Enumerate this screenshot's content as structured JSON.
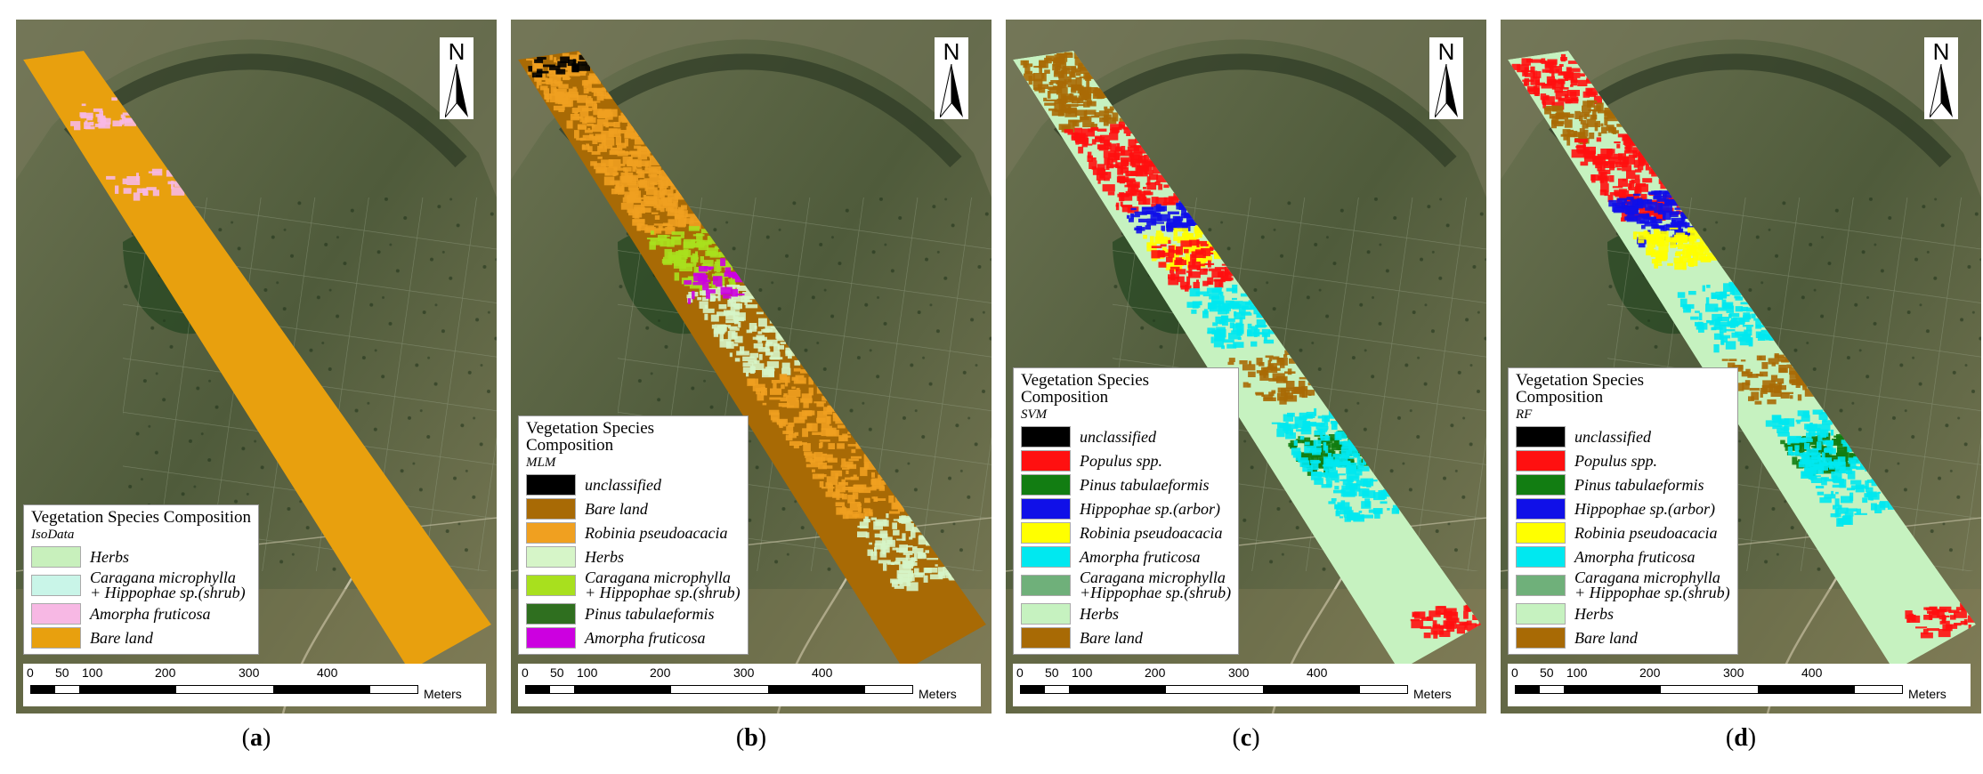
{
  "north_label": "N",
  "scale": {
    "ticks": [
      "0",
      "50",
      "100",
      "200",
      "300",
      "400"
    ],
    "unit": "Meters"
  },
  "colors": {
    "herbs_light": "#c8f0bc",
    "caragana_light": "#c9f5e8",
    "amorpha_pink": "#f7b8e4",
    "bare_orange": "#e8a00e",
    "black": "#000000",
    "bare_brown": "#a86a05",
    "robinia_orange": "#f0a020",
    "herbs_pale": "#d6f5c8",
    "caragana_green": "#a8e01e",
    "pinus_dark": "#2f6f1f",
    "amorpha_magenta": "#cc00e0",
    "populus_red": "#ff1010",
    "pinus_green": "#127d12",
    "hippophae_blue": "#1010e8",
    "robinia_yellow": "#ffff00",
    "amorpha_cyan": "#00e8f0",
    "caragana_sage": "#6fb07a",
    "herbs_mint": "#c6f2c0"
  },
  "panels": [
    {
      "caption": "a",
      "legend_title": "Vegetation Species Composition",
      "legend_subtitle": "IsoData",
      "items": [
        {
          "label": "Herbs",
          "color": "#c8f0bc"
        },
        {
          "label": "Caragana microphylla\n+ Hippophae sp.(shrub)",
          "color": "#c9f5e8"
        },
        {
          "label": "Amorpha fruticosa",
          "color": "#f7b8e4"
        },
        {
          "label": "Bare land",
          "color": "#e8a00e"
        }
      ]
    },
    {
      "caption": "b",
      "legend_title": "Vegetation Species\nComposition",
      "legend_subtitle": "MLM",
      "items": [
        {
          "label": "unclassified",
          "color": "#000000"
        },
        {
          "label": "Bare land",
          "color": "#a86a05"
        },
        {
          "label": "Robinia pseudoacacia",
          "color": "#f0a020"
        },
        {
          "label": "Herbs",
          "color": "#d6f5c8"
        },
        {
          "label": "Caragana microphylla\n+ Hippophae sp.(shrub)",
          "color": "#a8e01e"
        },
        {
          "label": "Pinus tabulaeformis",
          "color": "#2f6f1f"
        },
        {
          "label": "Amorpha fruticosa",
          "color": "#cc00e0"
        }
      ]
    },
    {
      "caption": "c",
      "legend_title": "Vegetation Species\nComposition",
      "legend_subtitle": "SVM",
      "items": [
        {
          "label": "unclassified",
          "color": "#000000"
        },
        {
          "label": "Populus spp.",
          "color": "#ff1010"
        },
        {
          "label": "Pinus tabulaeformis",
          "color": "#127d12"
        },
        {
          "label": "Hippophae sp.(arbor)",
          "color": "#1010e8"
        },
        {
          "label": "Robinia pseudoacacia",
          "color": "#ffff00"
        },
        {
          "label": "Amorpha fruticosa",
          "color": "#00e8f0"
        },
        {
          "label": "Caragana microphylla\n+Hippophae sp.(shrub)",
          "color": "#6fb07a"
        },
        {
          "label": "Herbs",
          "color": "#c6f2c0"
        },
        {
          "label": "Bare land",
          "color": "#a86a05"
        }
      ]
    },
    {
      "caption": "d",
      "legend_title": "Vegetation Species\nComposition",
      "legend_subtitle": "RF",
      "items": [
        {
          "label": "unclassified",
          "color": "#000000"
        },
        {
          "label": "Populus spp.",
          "color": "#ff1010"
        },
        {
          "label": "Pinus tabulaeformis",
          "color": "#127d12"
        },
        {
          "label": "Hippophae sp.(arbor)",
          "color": "#1010e8"
        },
        {
          "label": "Robinia pseudoacacia",
          "color": "#ffff00"
        },
        {
          "label": "Amorpha fruticosa",
          "color": "#00e8f0"
        },
        {
          "label": "Caragana microphylla\n+ Hippophae sp.(shrub)",
          "color": "#6fb07a"
        },
        {
          "label": "Herbs",
          "color": "#c6f2c0"
        },
        {
          "label": "Bare land",
          "color": "#a86a05"
        }
      ]
    }
  ]
}
